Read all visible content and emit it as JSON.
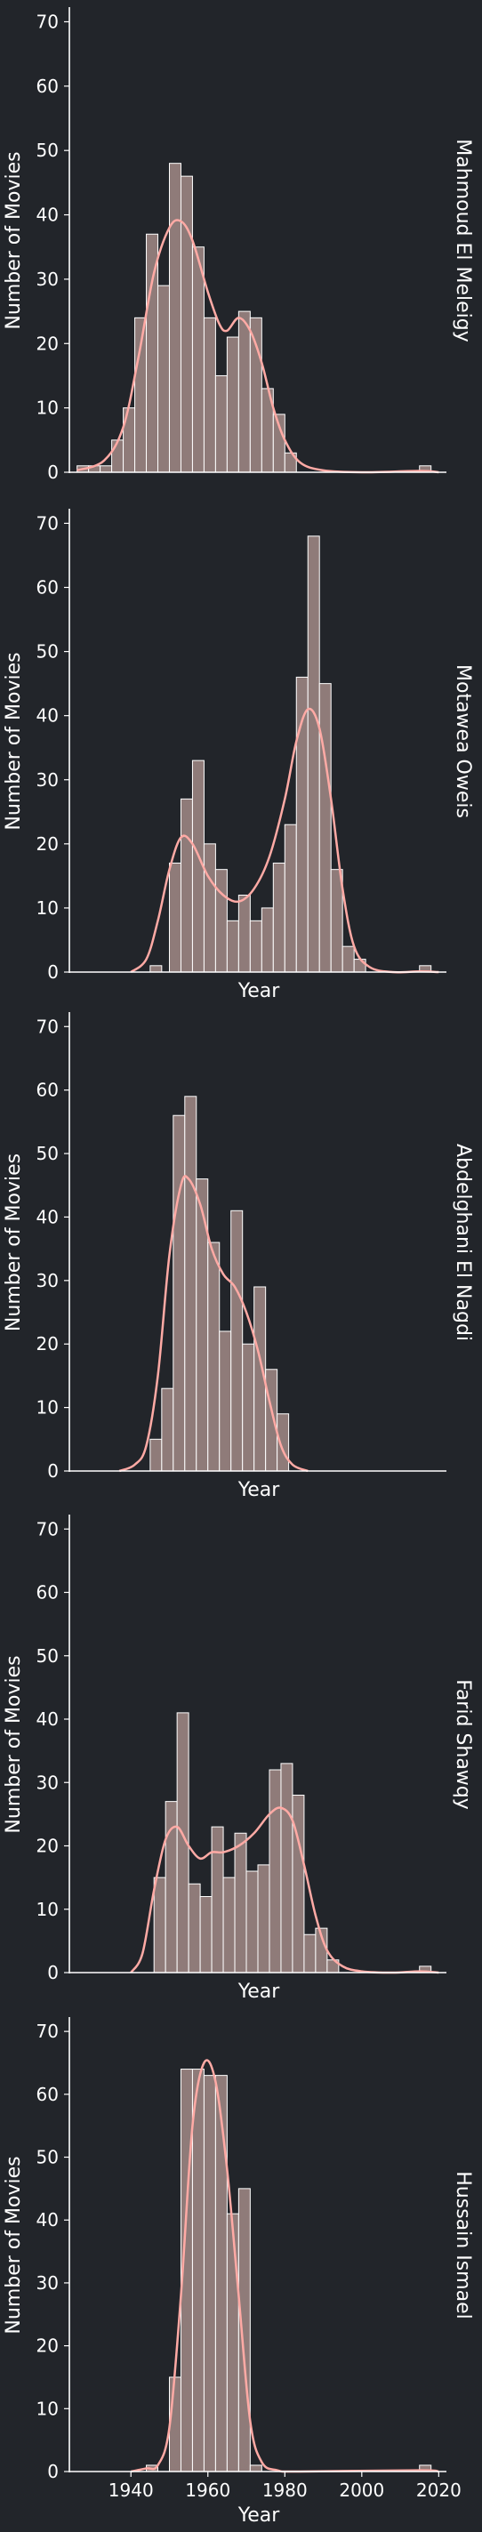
{
  "chart_data": {
    "type": "bar",
    "xlabel": "Year",
    "ylabel": "Number of Movies",
    "xlim": [
      1924,
      2022
    ],
    "ylim": [
      0,
      72
    ],
    "xticks": [
      1940,
      1960,
      1980,
      2000,
      2020
    ],
    "yticks": [
      0,
      10,
      20,
      30,
      40,
      50,
      60,
      70
    ],
    "style": {
      "background": "#22252a",
      "bar_fill": "#8f7b79",
      "bar_edge": "#ffffff",
      "kde_color": "#ffaaa5",
      "axis_color": "#ffffff"
    },
    "facets": [
      {
        "name": "Mahmoud El Meleigy",
        "bins": [
          [
            1926,
            1
          ],
          [
            1929,
            1
          ],
          [
            1932,
            1
          ],
          [
            1935,
            5
          ],
          [
            1938,
            10
          ],
          [
            1941,
            24
          ],
          [
            1944,
            37
          ],
          [
            1947,
            29
          ],
          [
            1950,
            48
          ],
          [
            1953,
            46
          ],
          [
            1956,
            35
          ],
          [
            1959,
            24
          ],
          [
            1962,
            15
          ],
          [
            1965,
            21
          ],
          [
            1968,
            25
          ],
          [
            1971,
            24
          ],
          [
            1974,
            13
          ],
          [
            1977,
            9
          ],
          [
            1980,
            3
          ],
          [
            2015,
            1
          ]
        ],
        "kde": [
          [
            1926,
            0.3
          ],
          [
            1933,
            1.8
          ],
          [
            1938,
            7
          ],
          [
            1942,
            18
          ],
          [
            1946,
            31
          ],
          [
            1950,
            38
          ],
          [
            1953,
            39
          ],
          [
            1956,
            36
          ],
          [
            1960,
            28
          ],
          [
            1963,
            23
          ],
          [
            1965,
            22
          ],
          [
            1968,
            24
          ],
          [
            1971,
            22
          ],
          [
            1974,
            17
          ],
          [
            1977,
            10
          ],
          [
            1980,
            5
          ],
          [
            1984,
            1.5
          ],
          [
            1990,
            0.3
          ],
          [
            2000,
            0
          ],
          [
            2015,
            0.2
          ],
          [
            2020,
            0
          ]
        ]
      },
      {
        "name": "Motawea Oweis",
        "bins": [
          [
            1945,
            1
          ],
          [
            1950,
            17
          ],
          [
            1953,
            27
          ],
          [
            1956,
            33
          ],
          [
            1959,
            20
          ],
          [
            1962,
            16
          ],
          [
            1965,
            8
          ],
          [
            1968,
            12
          ],
          [
            1971,
            8
          ],
          [
            1974,
            10
          ],
          [
            1977,
            17
          ],
          [
            1980,
            23
          ],
          [
            1983,
            46
          ],
          [
            1986,
            68
          ],
          [
            1989,
            45
          ],
          [
            1992,
            16
          ],
          [
            1995,
            4
          ],
          [
            1998,
            2
          ],
          [
            2015,
            1
          ]
        ],
        "kde": [
          [
            1940,
            0
          ],
          [
            1944,
            2
          ],
          [
            1947,
            8
          ],
          [
            1950,
            16
          ],
          [
            1953,
            21
          ],
          [
            1956,
            20
          ],
          [
            1960,
            15
          ],
          [
            1964,
            12
          ],
          [
            1968,
            11
          ],
          [
            1972,
            13
          ],
          [
            1976,
            18
          ],
          [
            1980,
            27
          ],
          [
            1983,
            36
          ],
          [
            1986,
            41
          ],
          [
            1989,
            38
          ],
          [
            1992,
            27
          ],
          [
            1995,
            13
          ],
          [
            1998,
            4
          ],
          [
            2002,
            0.8
          ],
          [
            2008,
            0
          ],
          [
            2015,
            0.1
          ],
          [
            2020,
            0
          ]
        ]
      },
      {
        "name": "Abdelghani El Nagdi",
        "bins": [
          [
            1945,
            5
          ],
          [
            1948,
            13
          ],
          [
            1951,
            56
          ],
          [
            1954,
            59
          ],
          [
            1957,
            46
          ],
          [
            1960,
            36
          ],
          [
            1963,
            22
          ],
          [
            1966,
            41
          ],
          [
            1969,
            20
          ],
          [
            1972,
            29
          ],
          [
            1975,
            16
          ],
          [
            1978,
            9
          ]
        ],
        "kde": [
          [
            1937,
            0
          ],
          [
            1941,
            1
          ],
          [
            1944,
            4
          ],
          [
            1947,
            15
          ],
          [
            1950,
            34
          ],
          [
            1953,
            45
          ],
          [
            1955,
            46
          ],
          [
            1958,
            42
          ],
          [
            1961,
            35
          ],
          [
            1964,
            31
          ],
          [
            1967,
            29
          ],
          [
            1970,
            25
          ],
          [
            1973,
            19
          ],
          [
            1976,
            11
          ],
          [
            1979,
            4
          ],
          [
            1982,
            1
          ],
          [
            1986,
            0
          ]
        ]
      },
      {
        "name": "Farid Shawqy",
        "bins": [
          [
            1946,
            15
          ],
          [
            1949,
            27
          ],
          [
            1952,
            41
          ],
          [
            1955,
            14
          ],
          [
            1958,
            12
          ],
          [
            1961,
            23
          ],
          [
            1964,
            15
          ],
          [
            1967,
            22
          ],
          [
            1970,
            16
          ],
          [
            1973,
            17
          ],
          [
            1976,
            32
          ],
          [
            1979,
            33
          ],
          [
            1982,
            28
          ],
          [
            1985,
            6
          ],
          [
            1988,
            7
          ],
          [
            1991,
            2
          ],
          [
            2015,
            1
          ]
        ],
        "kde": [
          [
            1940,
            0
          ],
          [
            1943,
            3
          ],
          [
            1946,
            13
          ],
          [
            1949,
            21
          ],
          [
            1952,
            23
          ],
          [
            1955,
            20
          ],
          [
            1958,
            18
          ],
          [
            1961,
            19
          ],
          [
            1964,
            19
          ],
          [
            1968,
            20
          ],
          [
            1972,
            22
          ],
          [
            1976,
            25
          ],
          [
            1979,
            26
          ],
          [
            1982,
            24
          ],
          [
            1985,
            17
          ],
          [
            1988,
            9
          ],
          [
            1991,
            3.5
          ],
          [
            1995,
            1
          ],
          [
            2000,
            0.2
          ],
          [
            2008,
            0
          ],
          [
            2015,
            0.2
          ],
          [
            2020,
            0
          ]
        ]
      },
      {
        "name": "Hussain Ismael",
        "bins": [
          [
            1944,
            1
          ],
          [
            1950,
            15
          ],
          [
            1953,
            64
          ],
          [
            1956,
            64
          ],
          [
            1959,
            63
          ],
          [
            1962,
            63
          ],
          [
            1965,
            41
          ],
          [
            1968,
            45
          ],
          [
            1971,
            1
          ],
          [
            2015,
            1
          ]
        ],
        "kde": [
          [
            1940,
            0
          ],
          [
            1944,
            0.5
          ],
          [
            1947,
            1
          ],
          [
            1950,
            7
          ],
          [
            1953,
            28
          ],
          [
            1956,
            55
          ],
          [
            1959,
            65
          ],
          [
            1962,
            62
          ],
          [
            1965,
            48
          ],
          [
            1968,
            28
          ],
          [
            1971,
            8
          ],
          [
            1974,
            1.5
          ],
          [
            1978,
            0.2
          ],
          [
            1984,
            0
          ],
          [
            2015,
            0.2
          ],
          [
            2020,
            0
          ]
        ]
      }
    ]
  }
}
